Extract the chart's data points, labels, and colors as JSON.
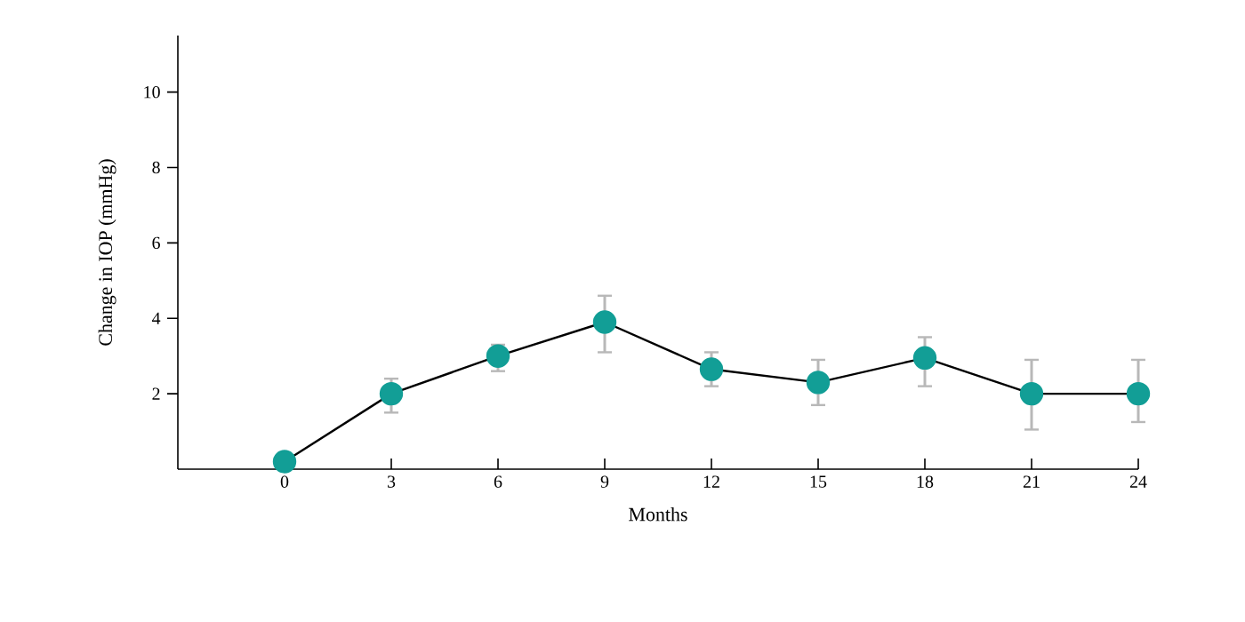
{
  "chart_data": {
    "type": "line",
    "xlabel": "Months",
    "ylabel": "Change in IOP (mmHg)",
    "x": [
      0,
      3,
      6,
      9,
      12,
      15,
      18,
      21,
      24
    ],
    "series": [
      {
        "color": "#129e96",
        "values": [
          0.2,
          2.0,
          3.0,
          3.9,
          2.65,
          2.3,
          2.95,
          2.0,
          2.0
        ],
        "errors": [
          null,
          [
            1.5,
            2.4
          ],
          [
            2.6,
            3.3
          ],
          [
            3.1,
            4.6
          ],
          [
            2.2,
            3.1
          ],
          [
            1.7,
            2.9
          ],
          [
            2.2,
            3.5
          ],
          [
            1.05,
            2.9
          ],
          [
            1.25,
            2.9
          ]
        ]
      }
    ],
    "xlim": [
      -3,
      24
    ],
    "ylim": [
      0,
      11.5
    ],
    "xticks": [
      0,
      3,
      6,
      9,
      12,
      15,
      18,
      21,
      24
    ],
    "yticks": [
      2,
      4,
      6,
      8,
      10
    ],
    "marker": "circle",
    "line_style": "solid",
    "grid": false
  }
}
